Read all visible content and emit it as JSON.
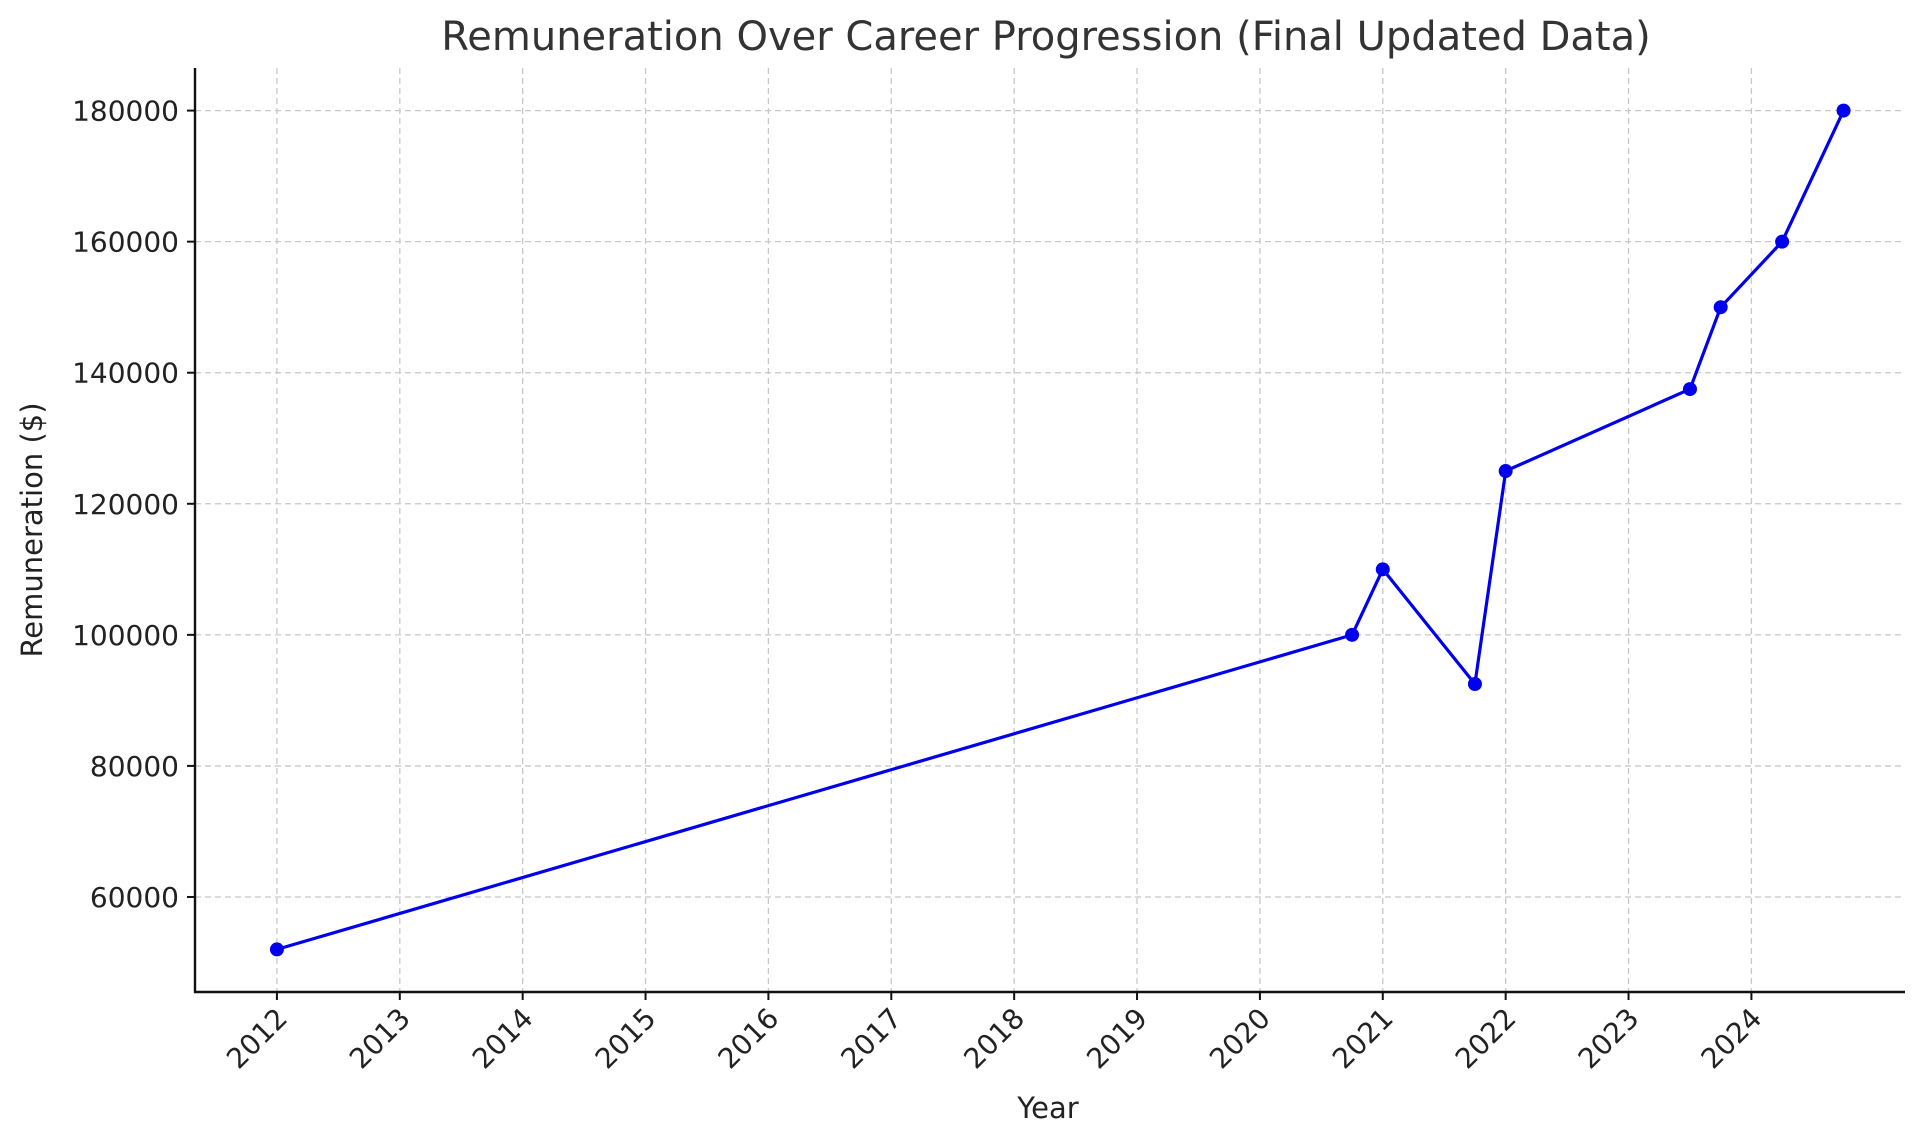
{
  "chart_data": {
    "type": "line",
    "title": "Remuneration Over Career Progression (Final Updated Data)",
    "xlabel": "Year",
    "ylabel": "Remuneration ($)",
    "x_scale": "time",
    "xlim": [
      "2011-05",
      "2025-04"
    ],
    "ylim": [
      45500,
      186500
    ],
    "x_ticks": [
      "2012",
      "2013",
      "2014",
      "2015",
      "2016",
      "2017",
      "2018",
      "2019",
      "2020",
      "2021",
      "2022",
      "2023",
      "2024"
    ],
    "y_ticks": [
      60000,
      80000,
      100000,
      120000,
      140000,
      160000,
      180000
    ],
    "y_tick_labels": [
      "60000",
      "80000",
      "100000",
      "120000",
      "140000",
      "160000",
      "180000"
    ],
    "grid": true,
    "legend": "none",
    "series": [
      {
        "color": "#0000ee",
        "marker": "circle",
        "x": [
          "2012-01",
          "2020-10",
          "2021-01",
          "2021-10",
          "2022-01",
          "2023-07",
          "2023-10",
          "2024-04",
          "2024-10"
        ],
        "y": [
          52000,
          100000,
          110000,
          92500,
          125000,
          137500,
          150000,
          160000,
          180000
        ]
      }
    ]
  }
}
